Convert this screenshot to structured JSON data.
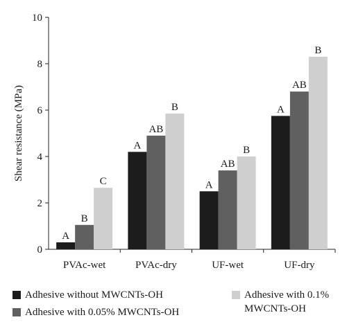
{
  "chart_data": {
    "type": "bar",
    "categories": [
      "PVAc-wet",
      "PVAc-dry",
      "UF-wet",
      "UF-dry"
    ],
    "series": [
      {
        "name": "Adhesive without MWCNTs-OH",
        "values": [
          0.3,
          4.2,
          2.5,
          5.75
        ],
        "labels": [
          "A",
          "A",
          "A",
          "A"
        ],
        "color": "#1c1c1c"
      },
      {
        "name": "Adhesive with 0.05% MWCNTs-OH",
        "values": [
          1.05,
          4.9,
          3.4,
          6.8
        ],
        "labels": [
          "B",
          "AB",
          "AB",
          "AB"
        ],
        "color": "#606060"
      },
      {
        "name": "Adhesive with 0.1% MWCNTs-OH",
        "values": [
          2.65,
          5.85,
          4.0,
          8.3
        ],
        "labels": [
          "C",
          "B",
          "B",
          "B"
        ],
        "color": "#cfcfcf"
      }
    ],
    "ylabel": "Shear resistance (MPa)",
    "xlabel": "",
    "ylim": [
      0,
      10
    ],
    "yticks": [
      0,
      2,
      4,
      6,
      8,
      10
    ],
    "grid": false,
    "legend_position": "bottom"
  },
  "legend": {
    "item1": "Adhesive without MWCNTs-OH",
    "item2": "Adhesive with 0.05% MWCNTs-OH",
    "item3": "Adhesive with 0.1%\nMWCNTs-OH"
  }
}
